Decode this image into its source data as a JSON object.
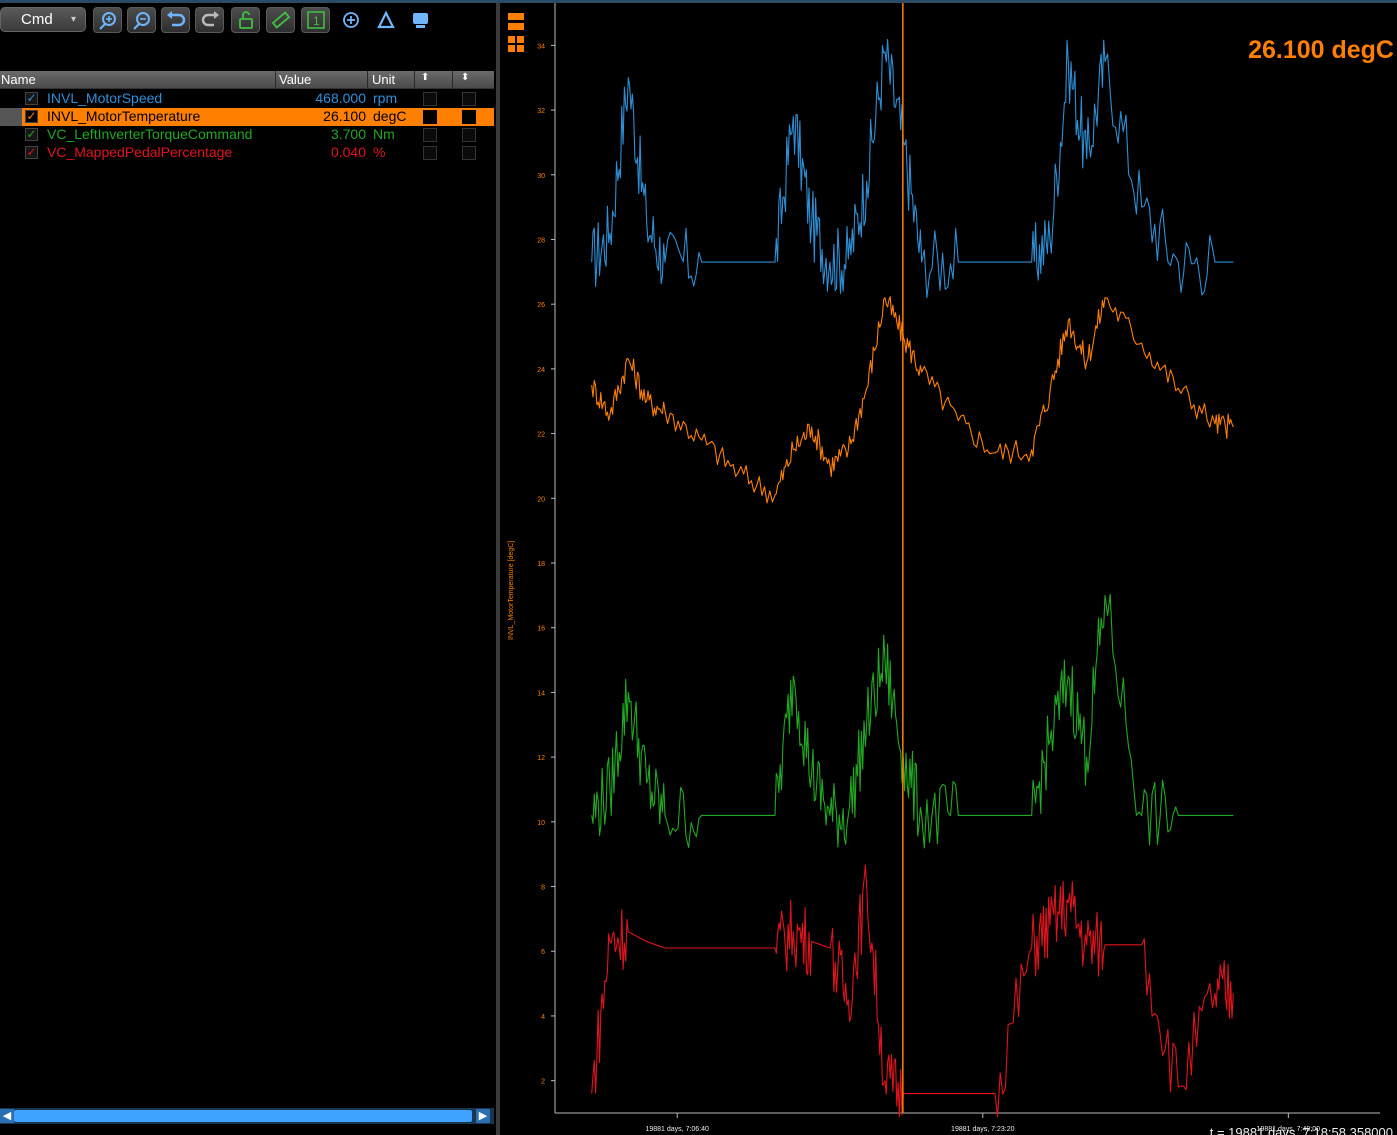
{
  "toolbar": {
    "cmd_label": "Cmd",
    "icons": [
      "zoom-in-icon",
      "zoom-out-icon",
      "undo-icon",
      "redo-icon",
      "unlock-icon",
      "ruler-icon",
      "one-icon",
      "crosshair-icon",
      "delta-icon",
      "window-icon"
    ]
  },
  "big_value": "26.100 degC",
  "table": {
    "headers": {
      "name": "Name",
      "value": "Value",
      "unit": "Unit"
    },
    "rows": [
      {
        "name": "INVL_MotorSpeed",
        "value": "468.000",
        "unit": "rpm",
        "color": "#2e8fd6",
        "checked": "✓"
      },
      {
        "name": "INVL_MotorTemperature",
        "value": "26.100",
        "unit": "degC",
        "color": "#000000",
        "checked": "✓"
      },
      {
        "name": "VC_LeftInverterTorqueCommand",
        "value": "3.700",
        "unit": "Nm",
        "color": "#22a822",
        "checked": "✓"
      },
      {
        "name": "VC_MappedPedalPercentage",
        "value": "0.040",
        "unit": "%",
        "color": "#e0141e",
        "checked": "✓"
      }
    ]
  },
  "cursor_time": "t = 19881 days, 7:18:58.358000",
  "chart_data": {
    "type": "line",
    "ylabel": "INVL_MotorTemperature [degC]",
    "ylim": [
      1,
      35
    ],
    "y_ticks": [
      "2",
      "4",
      "6",
      "8",
      "10",
      "12",
      "14",
      "16",
      "18",
      "20",
      "22",
      "24",
      "26",
      "28",
      "30",
      "32",
      "34"
    ],
    "x_ticks": [
      "19881 days, 7:06:40",
      "19881 days, 7:23:20",
      "19881 days, 7:40:00"
    ],
    "cursor_label": "19881 days, 7:18:58.358000",
    "colors": {
      "speed": "#2e8fd6",
      "temp": "#ff8000",
      "torque": "#22a822",
      "pedal": "#e0141e"
    },
    "series": [
      {
        "name": "INVL_MotorSpeed",
        "color": "#2e8fd6",
        "x": [
          "7:02",
          "7:03",
          "7:04",
          "7:05",
          "7:06",
          "7:08",
          "7:10",
          "7:12",
          "7:13",
          "7:14",
          "7:15",
          "7:16",
          "7:17",
          "7:18",
          "7:19",
          "7:20",
          "7:22",
          "7:24",
          "7:26",
          "7:27",
          "7:28",
          "7:29",
          "7:30",
          "7:32",
          "7:34",
          "7:36",
          "7:37"
        ],
        "values": [
          27.3,
          28.2,
          33.0,
          28.5,
          27.3,
          27.3,
          27.3,
          27.3,
          31.8,
          28.5,
          27.3,
          27.4,
          29.8,
          33.8,
          31.0,
          27.3,
          27.3,
          27.3,
          27.3,
          28.0,
          33.5,
          30.5,
          33.5,
          29.0,
          27.3,
          27.3,
          27.3
        ]
      },
      {
        "name": "INVL_MotorTemperature",
        "color": "#ff8000",
        "x": [
          "7:02",
          "7:03",
          "7:04",
          "7:05",
          "7:06",
          "7:08",
          "7:10",
          "7:12",
          "7:13",
          "7:14",
          "7:15",
          "7:16",
          "7:17",
          "7:18",
          "7:19",
          "7:20",
          "7:22",
          "7:24",
          "7:26",
          "7:27",
          "7:28",
          "7:29",
          "7:30",
          "7:32",
          "7:34",
          "7:36",
          "7:37"
        ],
        "values": [
          23.5,
          22.6,
          24.3,
          23.0,
          22.7,
          21.8,
          20.8,
          20.1,
          21.5,
          22.2,
          21.0,
          21.5,
          23.4,
          26.2,
          25.0,
          23.9,
          22.4,
          21.4,
          21.5,
          23.3,
          25.5,
          24.2,
          26.2,
          24.8,
          23.4,
          22.3,
          22.2
        ]
      },
      {
        "name": "VC_LeftInverterTorqueCommand",
        "color": "#22a822",
        "x": [
          "7:02",
          "7:03",
          "7:04",
          "7:05",
          "7:06",
          "7:08",
          "7:10",
          "7:12",
          "7:13",
          "7:14",
          "7:15",
          "7:16",
          "7:17",
          "7:18",
          "7:19",
          "7:20",
          "7:22",
          "7:24",
          "7:26",
          "7:27",
          "7:28",
          "7:29",
          "7:30",
          "7:32",
          "7:34",
          "7:36",
          "7:37"
        ],
        "values": [
          10.2,
          11.0,
          14.0,
          11.2,
          10.2,
          10.2,
          10.2,
          10.2,
          14.5,
          11.5,
          10.2,
          10.2,
          13.0,
          15.0,
          12.0,
          10.2,
          10.2,
          10.2,
          10.2,
          12.5,
          14.5,
          12.0,
          17.0,
          10.2,
          10.2,
          10.2,
          10.2
        ]
      },
      {
        "name": "VC_MappedPedalPercentage",
        "color": "#e0141e",
        "x": [
          "7:02",
          "7:03",
          "7:04",
          "7:05",
          "7:06",
          "7:08",
          "7:10",
          "7:12",
          "7:13",
          "7:14",
          "7:15",
          "7:16",
          "7:17",
          "7:18",
          "7:19",
          "7:20",
          "7:22",
          "7:24",
          "7:26",
          "7:27",
          "7:28",
          "7:29",
          "7:30",
          "7:32",
          "7:34",
          "7:36",
          "7:37"
        ],
        "values": [
          1.6,
          6.3,
          6.6,
          6.3,
          6.1,
          6.1,
          6.1,
          6.1,
          6.6,
          6.3,
          6.1,
          4.5,
          8.0,
          2.0,
          1.6,
          1.6,
          1.6,
          1.6,
          6.1,
          6.8,
          7.5,
          6.2,
          6.2,
          6.2,
          1.8,
          4.7,
          4.7
        ]
      }
    ]
  }
}
